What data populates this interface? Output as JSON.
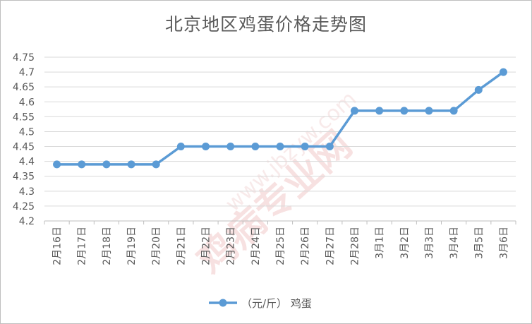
{
  "chart_data": {
    "type": "line",
    "title": "北京地区鸡蛋价格走势图",
    "xlabel": "",
    "ylabel": "",
    "categories": [
      "2月16日",
      "2月17日",
      "2月18日",
      "2月19日",
      "2月20日",
      "2月21日",
      "2月22日",
      "2月23日",
      "2月24日",
      "2月25日",
      "2月26日",
      "2月27日",
      "2月28日",
      "3月1日",
      "3月2日",
      "3月3日",
      "3月4日",
      "3月5日",
      "3月6日"
    ],
    "series": [
      {
        "name": "（元/斤） 鸡蛋",
        "values": [
          4.39,
          4.39,
          4.39,
          4.39,
          4.39,
          4.45,
          4.45,
          4.45,
          4.45,
          4.45,
          4.45,
          4.45,
          4.57,
          4.57,
          4.57,
          4.57,
          4.57,
          4.64,
          4.7
        ]
      }
    ],
    "yticks": [
      "4.2",
      "4.25",
      "4.3",
      "4.35",
      "4.4",
      "4.45",
      "4.5",
      "4.55",
      "4.6",
      "4.65",
      "4.7",
      "4.75"
    ],
    "ylim": [
      4.2,
      4.75
    ],
    "grid": true,
    "legend_position": "bottom",
    "line_color": "#5b9bd5",
    "watermark": "鸡病专业网 www.jbzyw.com"
  }
}
